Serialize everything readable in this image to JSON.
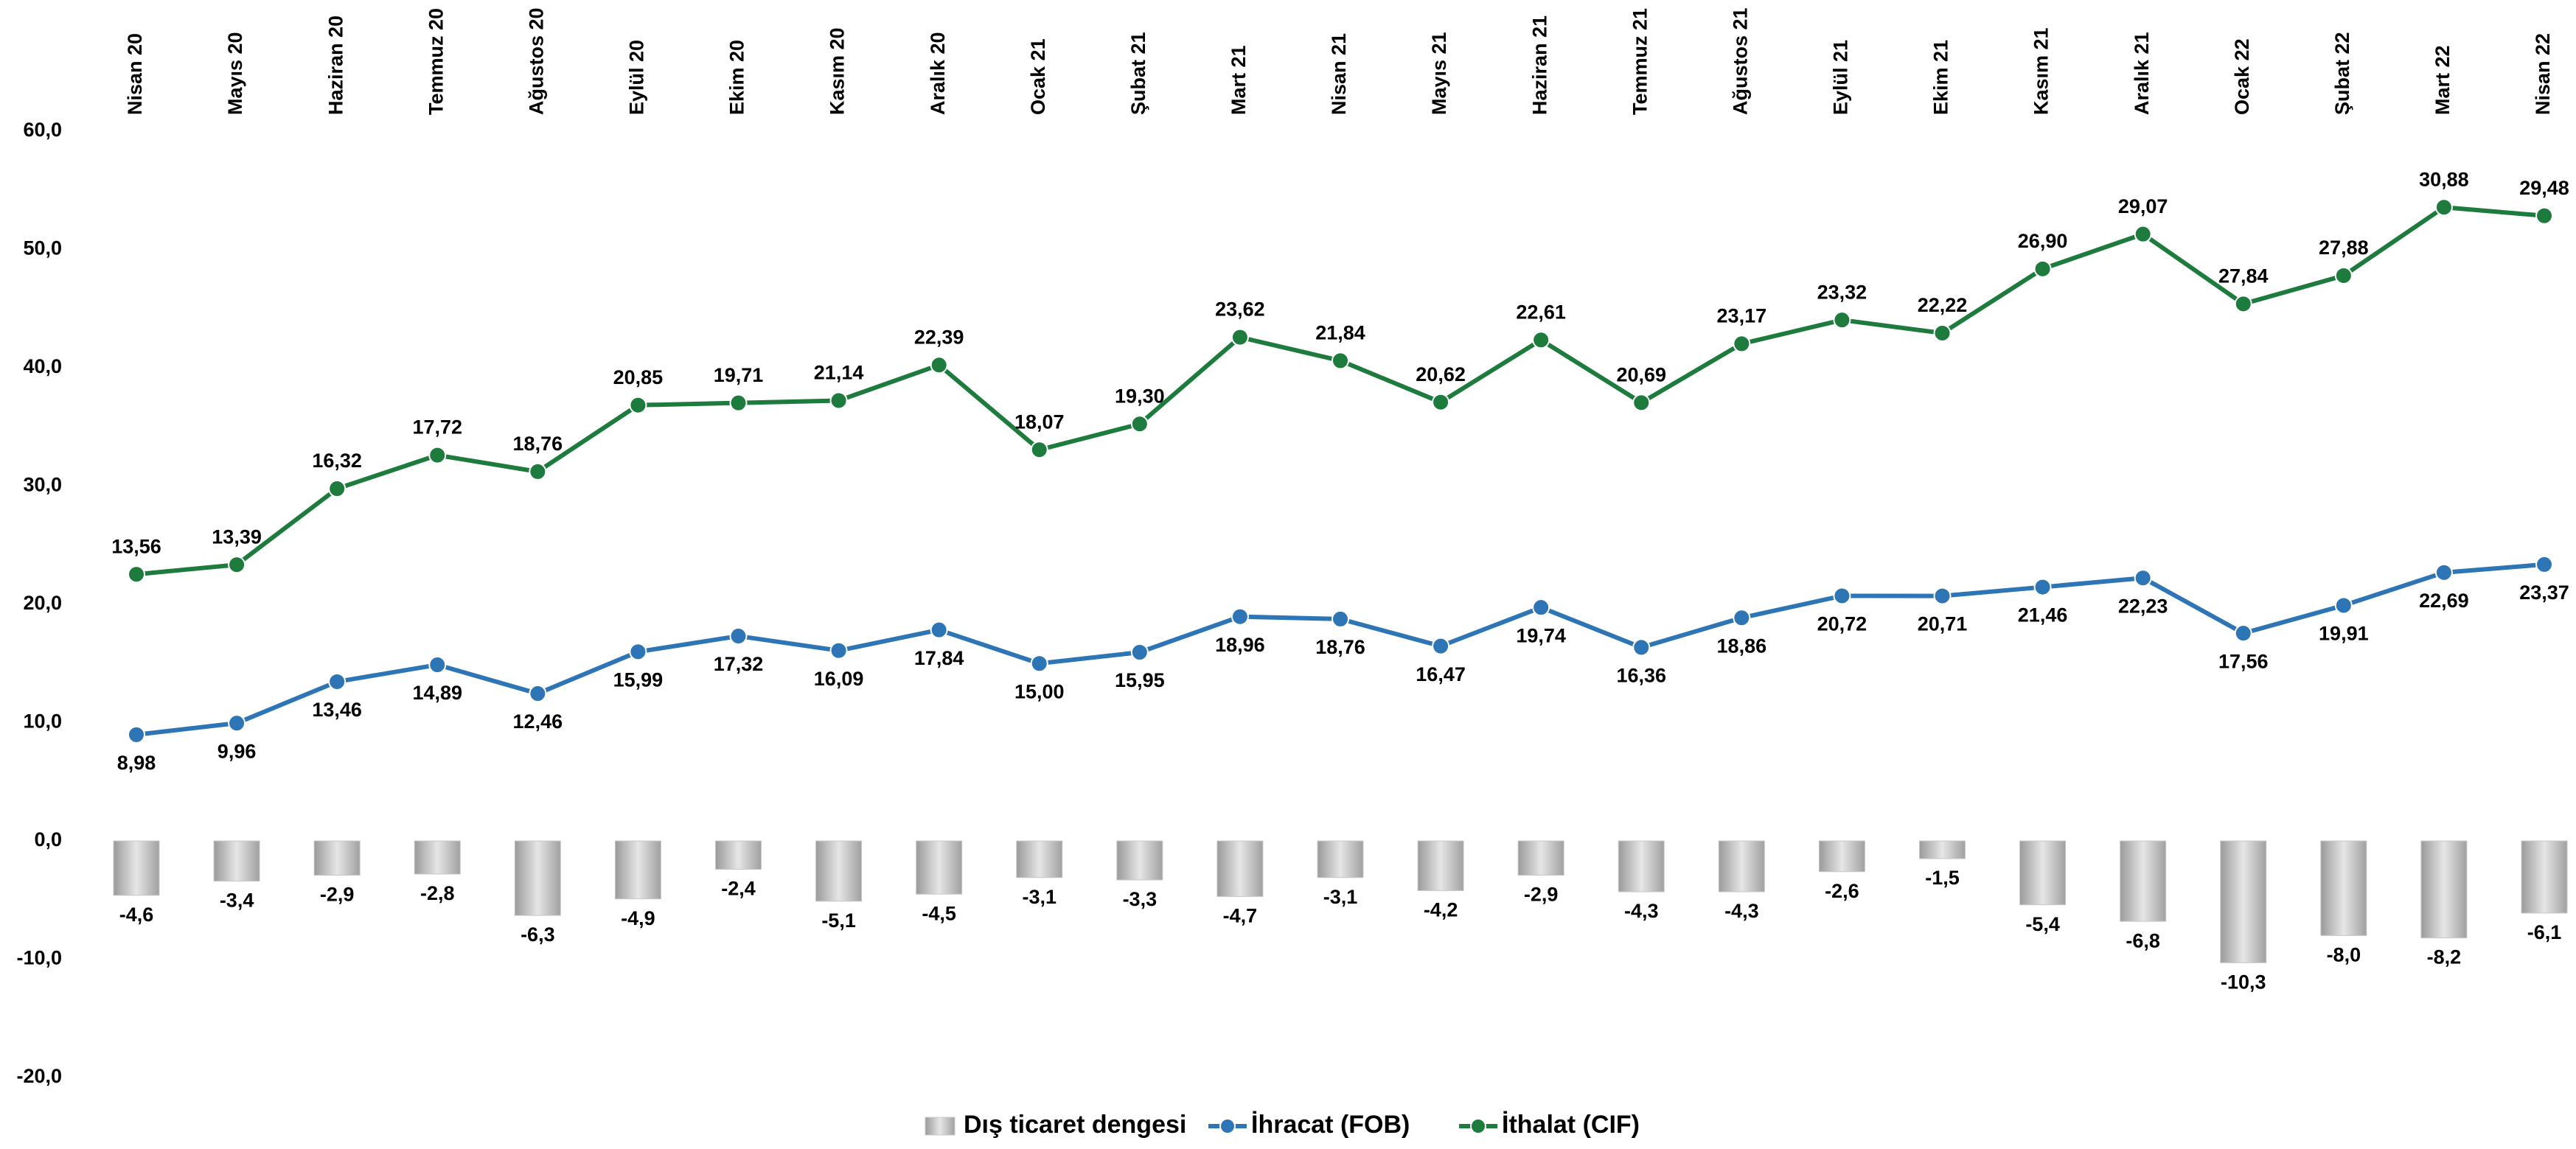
{
  "chart_data": {
    "type": "combo",
    "stacked_lines": true,
    "categories": [
      "Nisan 20",
      "Mayıs 20",
      "Haziran 20",
      "Temmuz 20",
      "Ağustos 20",
      "Eylül 20",
      "Ekim 20",
      "Kasım 20",
      "Aralık 20",
      "Ocak 21",
      "Şubat 21",
      "Mart 21",
      "Nisan 21",
      "Mayıs 21",
      "Haziran 21",
      "Temmuz 21",
      "Ağustos 21",
      "Eylül 21",
      "Ekim 21",
      "Kasım 21",
      "Aralık 21",
      "Ocak 22",
      "Şubat 22",
      "Mart 22",
      "Nisan 22"
    ],
    "series": [
      {
        "name": "Dış ticaret dengesi",
        "type": "bar",
        "color": "#c8c8c8",
        "values": [
          -4.6,
          -3.4,
          -2.9,
          -2.8,
          -6.3,
          -4.9,
          -2.4,
          -5.1,
          -4.5,
          -3.1,
          -3.3,
          -4.7,
          -3.1,
          -4.2,
          -2.9,
          -4.3,
          -4.3,
          -2.6,
          -1.5,
          -5.4,
          -6.8,
          -10.3,
          -8.0,
          -8.2,
          -6.1
        ],
        "value_labels": [
          "-4,6",
          "-3,4",
          "-2,9",
          "-2,8",
          "-6,3",
          "-4,9",
          "-2,4",
          "-5,1",
          "-4,5",
          "-3,1",
          "-3,3",
          "-4,7",
          "-3,1",
          "-4,2",
          "-2,9",
          "-4,3",
          "-4,3",
          "-2,6",
          "-1,5",
          "-5,4",
          "-6,8",
          "-10,3",
          "-8,0",
          "-8,2",
          "-6,1"
        ]
      },
      {
        "name": "İhracat (FOB)",
        "type": "line",
        "color": "#2e75b6",
        "values": [
          8.98,
          9.96,
          13.46,
          14.89,
          12.46,
          15.99,
          17.32,
          16.09,
          17.84,
          15.0,
          15.95,
          18.96,
          18.76,
          16.47,
          19.74,
          16.36,
          18.86,
          20.72,
          20.71,
          21.46,
          22.23,
          17.56,
          19.91,
          22.69,
          23.37
        ],
        "value_labels": [
          "8,98",
          "9,96",
          "13,46",
          "14,89",
          "12,46",
          "15,99",
          "17,32",
          "16,09",
          "17,84",
          "15,00",
          "15,95",
          "18,96",
          "18,76",
          "16,47",
          "19,74",
          "16,36",
          "18,86",
          "20,72",
          "20,71",
          "21,46",
          "22,23",
          "17,56",
          "19,91",
          "22,69",
          "23,37"
        ]
      },
      {
        "name": "İthalat (CIF)",
        "type": "line",
        "color": "#1e7b3e",
        "values": [
          13.56,
          13.39,
          16.32,
          17.72,
          18.76,
          20.85,
          19.71,
          21.14,
          22.39,
          18.07,
          19.3,
          23.62,
          21.84,
          20.62,
          22.61,
          20.69,
          23.17,
          23.32,
          22.22,
          26.9,
          29.07,
          27.84,
          27.88,
          30.88,
          29.48
        ],
        "value_labels": [
          "13,56",
          "13,39",
          "16,32",
          "17,72",
          "18,76",
          "20,85",
          "19,71",
          "21,14",
          "22,39",
          "18,07",
          "19,30",
          "23,62",
          "21,84",
          "20,62",
          "22,61",
          "20,69",
          "23,17",
          "23,32",
          "22,22",
          "26,90",
          "29,07",
          "27,84",
          "27,88",
          "30,88",
          "29,48"
        ]
      }
    ],
    "ylim": [
      -20,
      60
    ],
    "yticks": [
      {
        "value": -20,
        "label": "-20,0"
      },
      {
        "value": -10,
        "label": "-10,0"
      },
      {
        "value": 0,
        "label": "0,0"
      },
      {
        "value": 10,
        "label": "10,0"
      },
      {
        "value": 20,
        "label": "20,0"
      },
      {
        "value": 30,
        "label": "30,0"
      },
      {
        "value": 40,
        "label": "40,0"
      },
      {
        "value": 50,
        "label": "50,0"
      },
      {
        "value": 60,
        "label": "60,0"
      }
    ],
    "grid": false,
    "legend": "bottom"
  }
}
